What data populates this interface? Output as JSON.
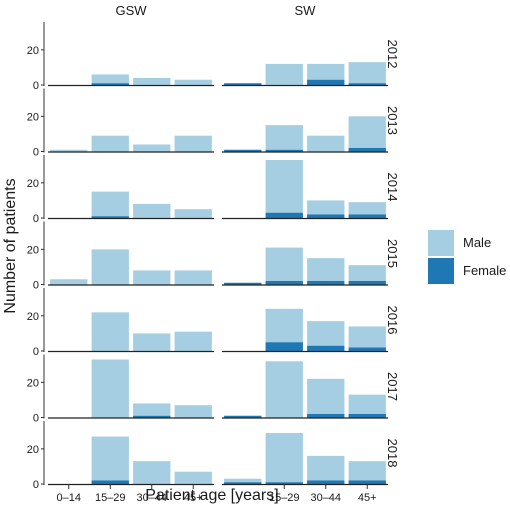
{
  "colors": {
    "Male": "#a6cee3",
    "Female": "#1f78b4"
  },
  "chart_data": {
    "type": "bar",
    "stacked": true,
    "faceted": true,
    "xlabel": "Patient age [years]",
    "ylabel": "Number of patients",
    "ylim": [
      0,
      33
    ],
    "y_ticks": [
      0,
      20
    ],
    "categories": [
      "0–14",
      "15–29",
      "30–44",
      "45+"
    ],
    "columns": [
      "GSW",
      "SW"
    ],
    "years": [
      "2012",
      "2013",
      "2014",
      "2015",
      "2016",
      "2017",
      "2018"
    ],
    "legend": {
      "position": "right",
      "entries": [
        "Male",
        "Female"
      ]
    },
    "panels": {
      "GSW": {
        "2012": {
          "Male": [
            0,
            5,
            4,
            3
          ],
          "Female": [
            0,
            1,
            0,
            0
          ]
        },
        "2013": {
          "Male": [
            1,
            9,
            4,
            9
          ],
          "Female": [
            0,
            0,
            0,
            0
          ]
        },
        "2014": {
          "Male": [
            0,
            14,
            8,
            5
          ],
          "Female": [
            0,
            1,
            0,
            0
          ]
        },
        "2015": {
          "Male": [
            3,
            20,
            8,
            8
          ],
          "Female": [
            0,
            0,
            0,
            0
          ]
        },
        "2016": {
          "Male": [
            0,
            22,
            10,
            11
          ],
          "Female": [
            0,
            0,
            0,
            0
          ]
        },
        "2017": {
          "Male": [
            0,
            33,
            7,
            7
          ],
          "Female": [
            0,
            0,
            1,
            0
          ]
        },
        "2018": {
          "Male": [
            0,
            25,
            13,
            7
          ],
          "Female": [
            0,
            2,
            0,
            0
          ]
        }
      },
      "SW": {
        "2012": {
          "Male": [
            0,
            12,
            9,
            12
          ],
          "Female": [
            1,
            0,
            3,
            1
          ]
        },
        "2013": {
          "Male": [
            0,
            14,
            9,
            18
          ],
          "Female": [
            1,
            1,
            0,
            2
          ]
        },
        "2014": {
          "Male": [
            0,
            30,
            8,
            7
          ],
          "Female": [
            0,
            3,
            2,
            2
          ]
        },
        "2015": {
          "Male": [
            0,
            19,
            13,
            9
          ],
          "Female": [
            1,
            2,
            2,
            2
          ]
        },
        "2016": {
          "Male": [
            0,
            19,
            14,
            12
          ],
          "Female": [
            0,
            5,
            3,
            2
          ]
        },
        "2017": {
          "Male": [
            0,
            32,
            20,
            11
          ],
          "Female": [
            1,
            0,
            2,
            2
          ]
        },
        "2018": {
          "Male": [
            2,
            28,
            14,
            11
          ],
          "Female": [
            1,
            1,
            2,
            2
          ]
        }
      }
    }
  }
}
